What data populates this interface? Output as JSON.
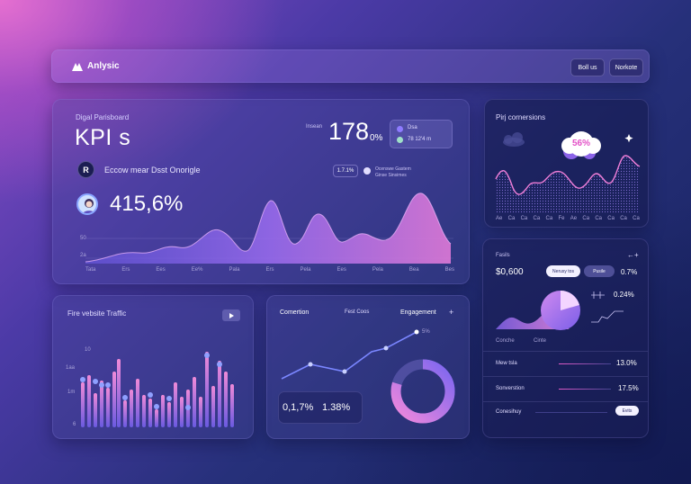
{
  "header": {
    "brand": "Anlysic",
    "btn_left": "Boll us",
    "btn_right": "Norkote"
  },
  "kpi": {
    "subtitle": "Digal Parisboard",
    "title": "KPI s",
    "badge_letter": "R",
    "row_text": "Eccow mear Dsst Onorigle",
    "metric_caption": "Insean",
    "metric_value": "178",
    "metric_unit": "0%",
    "legend_top": "Dsa",
    "legend_bottom": "78 12'4 m",
    "percent_value": "415,6%",
    "chip_value": "1.7.1%",
    "chip_caption_1": "Ocenswe Gastem",
    "chip_caption_2": "Ginse Sinsimes",
    "yticks": [
      "50",
      "2a"
    ],
    "xticks": [
      "Tata",
      "Ers",
      "Ees",
      "Ee%",
      "Pala",
      "Ers",
      "Pela",
      "Ees",
      "Pela",
      "Bea",
      "Bes"
    ]
  },
  "conversions": {
    "title": "Pirj cornersions",
    "bubble_value": "56%",
    "xticks": [
      "Ae",
      "Ca",
      "Ca",
      "Ca",
      "Ca",
      "Fe",
      "Ae",
      "Ca",
      "Ca",
      "Ca",
      "Ca",
      "Ca"
    ]
  },
  "stats": {
    "label": "Fasils",
    "corner": "←+",
    "value": "$0,600",
    "btn_a": "Nerusy tos",
    "btn_b": "Pusile",
    "pct_1": "0.7%",
    "pct_2": "0.24%",
    "axis_a": "Conche",
    "axis_b": "Cinte",
    "rows": [
      {
        "label": "Mew tsla",
        "value": "13.0%"
      },
      {
        "label": "Sonverstion",
        "value": "17.5%"
      },
      {
        "label": "Conesihuy",
        "value": "Evits"
      }
    ]
  },
  "traffic": {
    "title": "Fire vebsite Traffic",
    "yticks": [
      "10",
      "1aa",
      "1m",
      "6"
    ]
  },
  "conversion_panel": {
    "tab_1": "Comertion",
    "tab_2": "Fest Coos",
    "tab_3": "Engagement",
    "tab_more": "+",
    "point_label": "5%",
    "metric_1": "0,1,7%",
    "metric_2": "1.38%"
  },
  "colors": {
    "accent_pink": "#f07ed8",
    "accent_violet": "#8e7bff",
    "accent_blue": "#5f6cff"
  }
}
